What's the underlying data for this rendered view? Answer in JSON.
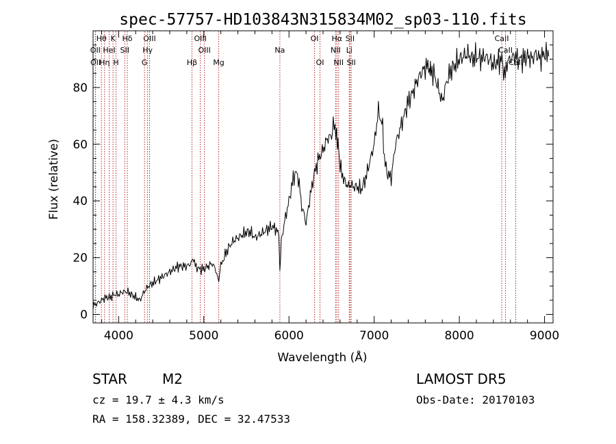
{
  "title": "spec-57757-HD103843N315834M02_sp03-110.fits",
  "footer": {
    "class_label": "STAR",
    "subclass": "M2",
    "survey": "LAMOST DR5",
    "cz": "cz = 19.7 ± 4.3 km/s",
    "obs_date": "Obs-Date: 20170103",
    "coords": "RA = 158.32389, DEC =  32.47533"
  },
  "colors": {
    "line_marker": "#b22222",
    "spectrum": "#000000"
  },
  "chart_data": {
    "type": "line",
    "xlabel": "Wavelength (Å)",
    "ylabel": "Flux (relative)",
    "xlim": [
      3700,
      9100
    ],
    "ylim": [
      -3,
      100
    ],
    "grid": false,
    "x_ticks": [
      "4000",
      "5000",
      "6000",
      "7000",
      "8000",
      "9000"
    ],
    "y_ticks": [
      "0",
      "20",
      "40",
      "60",
      "80"
    ],
    "lines": [
      {
        "label": "Hθ",
        "x": 3798,
        "row": 0
      },
      {
        "label": "K",
        "x": 3934,
        "row": 0
      },
      {
        "label": "Hδ",
        "x": 4102,
        "row": 0
      },
      {
        "label": "OIII",
        "x": 4363,
        "row": 0
      },
      {
        "label": "OIII",
        "x": 4959,
        "row": 0
      },
      {
        "label": "OI",
        "x": 6300,
        "row": 0
      },
      {
        "label": "Hα",
        "x": 6563,
        "row": 0
      },
      {
        "label": "SII",
        "x": 6717,
        "row": 0
      },
      {
        "label": "CaII",
        "x": 8498,
        "row": 0
      },
      {
        "label": "OII",
        "x": 3727,
        "row": 1
      },
      {
        "label": "HeI",
        "x": 3889,
        "row": 1
      },
      {
        "label": "SII",
        "x": 4072,
        "row": 1
      },
      {
        "label": "Hγ",
        "x": 4340,
        "row": 1
      },
      {
        "label": "OIII",
        "x": 5007,
        "row": 1
      },
      {
        "label": "Na",
        "x": 5893,
        "row": 1
      },
      {
        "label": "NII",
        "x": 6548,
        "row": 1
      },
      {
        "label": "Li",
        "x": 6708,
        "row": 1
      },
      {
        "label": "CaII",
        "x": 8542,
        "row": 1
      },
      {
        "label": "OII",
        "x": 3729,
        "row": 2
      },
      {
        "label": "Hη",
        "x": 3835,
        "row": 2
      },
      {
        "label": "H",
        "x": 3969,
        "row": 2
      },
      {
        "label": "G",
        "x": 4304,
        "row": 2
      },
      {
        "label": "Hβ",
        "x": 4861,
        "row": 2
      },
      {
        "label": "Mg",
        "x": 5175,
        "row": 2
      },
      {
        "label": "OI",
        "x": 6364,
        "row": 2
      },
      {
        "label": "NII",
        "x": 6583,
        "row": 2
      },
      {
        "label": "SII",
        "x": 6731,
        "row": 2
      },
      {
        "label": "CaII",
        "x": 8662,
        "row": 2
      }
    ],
    "series": [
      {
        "x": [
          3700,
          3750,
          3800,
          3850,
          3900,
          3950,
          4000,
          4050,
          4100,
          4150,
          4200,
          4250,
          4300,
          4350,
          4400,
          4450,
          4500,
          4550,
          4600,
          4650,
          4700,
          4750,
          4800,
          4850,
          4880,
          4900,
          4950,
          5000,
          5050,
          5100,
          5150,
          5175,
          5200,
          5250,
          5300,
          5350,
          5400,
          5450,
          5500,
          5550,
          5600,
          5650,
          5700,
          5750,
          5800,
          5850,
          5880,
          5893,
          5910,
          5950,
          6000,
          6050,
          6080,
          6100,
          6120,
          6150,
          6180,
          6200,
          6230,
          6250,
          6300,
          6350,
          6400,
          6450,
          6500,
          6520,
          6550,
          6560,
          6570,
          6580,
          6600,
          6650,
          6700,
          6720,
          6750,
          6800,
          6850,
          6900,
          6950,
          7000,
          7050,
          7100,
          7120,
          7150,
          7200,
          7250,
          7300,
          7350,
          7400,
          7450,
          7500,
          7550,
          7600,
          7650,
          7660,
          7700,
          7750,
          7800,
          7850,
          7900,
          7950,
          8000,
          8050,
          8100,
          8150,
          8200,
          8250,
          8300,
          8350,
          8400,
          8450,
          8500,
          8520,
          8540,
          8560,
          8600,
          8650,
          8700,
          8750,
          8800,
          8850,
          8900,
          8950,
          9000,
          9050
        ],
        "y": [
          3,
          4,
          5,
          6,
          6,
          7,
          7,
          8,
          8,
          7,
          6,
          5,
          8,
          10,
          11,
          12,
          13,
          14,
          15,
          16,
          17,
          17,
          17,
          18,
          20,
          17,
          16,
          16,
          17,
          18,
          15,
          12,
          17,
          21,
          24,
          26,
          27,
          28,
          29,
          29,
          27,
          28,
          29,
          30,
          31,
          30,
          28,
          16,
          26,
          33,
          40,
          48,
          50,
          49,
          46,
          38,
          35,
          32,
          38,
          42,
          50,
          55,
          58,
          62,
          63,
          67,
          65,
          63,
          58,
          60,
          52,
          47,
          45,
          46,
          45,
          45,
          44,
          48,
          54,
          60,
          72,
          66,
          55,
          50,
          48,
          60,
          65,
          70,
          75,
          78,
          82,
          85,
          87,
          88,
          86,
          85,
          80,
          75,
          82,
          86,
          88,
          90,
          91,
          92,
          90,
          91,
          90,
          91,
          90,
          88,
          89,
          90,
          86,
          84,
          89,
          90,
          91,
          90,
          90,
          91,
          90,
          92,
          90,
          92,
          91
        ]
      }
    ]
  }
}
